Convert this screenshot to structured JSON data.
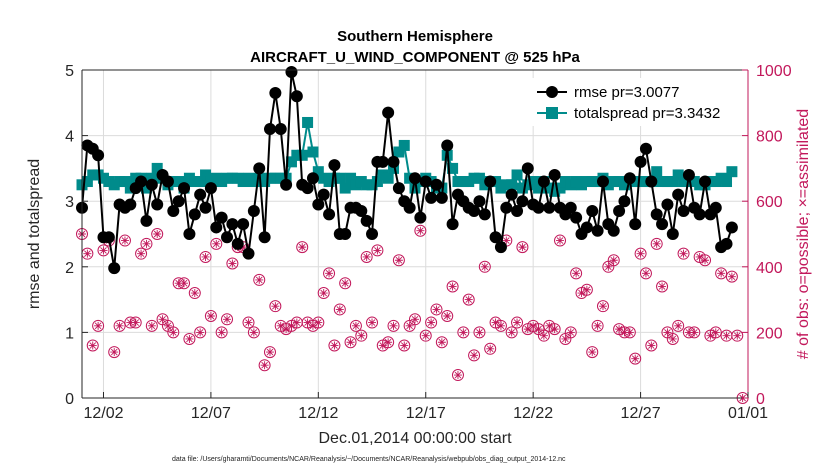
{
  "chart_data": {
    "type": "line",
    "title": "Southern Hemisphere",
    "subtitle": "AIRCRAFT_U_WIND_COMPONENT @ 525 hPa",
    "xlabel": "Dec.01,2014 00:00:00 start",
    "ylabel": "rmse and totalspread",
    "ylabel_right": "# of obs: o=possible; ×=assimilated",
    "footnote": "data file: /Users/gharamti/Documents/NCAR/Reanalysis/~/Documents/NCAR/Reanalysis/webpub/obs_diag_output_2014-12.nc",
    "xlim": [
      1,
      32
    ],
    "ylim": [
      0,
      5
    ],
    "ylim_right": [
      0,
      1000
    ],
    "x_ticks": [
      2,
      7,
      12,
      17,
      22,
      27,
      32
    ],
    "x_tick_labels": [
      "12/02",
      "12/07",
      "12/12",
      "12/17",
      "12/22",
      "12/27",
      "01/01"
    ],
    "y_ticks": [
      0,
      1,
      2,
      3,
      4,
      5
    ],
    "y_tick_labels": [
      "0",
      "1",
      "2",
      "3",
      "4",
      "5"
    ],
    "y_ticks_right": [
      0,
      200,
      400,
      600,
      800,
      1000
    ],
    "y_tick_labels_right": [
      "0",
      "200",
      "400",
      "600",
      "800",
      "1000"
    ],
    "grid": true,
    "legend_position": "top-right",
    "colors": {
      "rmse": "#000000",
      "spread": "#008b8b",
      "obs": "#c2185b"
    },
    "series": [
      {
        "name": "rmse pr=3.0077",
        "key": "rmse",
        "marker": "circle",
        "values": [
          2.9,
          3.85,
          3.8,
          3.7,
          2.45,
          2.45,
          1.98,
          2.95,
          2.9,
          2.95,
          3.2,
          3.3,
          2.7,
          3.25,
          2.95,
          3.4,
          3.3,
          2.85,
          3.0,
          3.2,
          2.5,
          2.8,
          3.1,
          2.9,
          3.2,
          2.6,
          2.75,
          2.45,
          2.65,
          2.35,
          2.65,
          2.2,
          2.85,
          3.5,
          2.45,
          4.1,
          4.65,
          4.1,
          3.25,
          4.97,
          4.6,
          3.25,
          3.2,
          3.35,
          2.95,
          3.1,
          2.8,
          3.55,
          2.5,
          2.5,
          2.9,
          2.9,
          2.85,
          2.7,
          2.5,
          3.6,
          3.6,
          4.35,
          3.6,
          3.2,
          3.0,
          2.9,
          3.35,
          2.75,
          3.3,
          3.05,
          3.25,
          3.05,
          3.85,
          2.65,
          3.1,
          3.0,
          2.9,
          2.85,
          3.0,
          2.8,
          3.3,
          2.45,
          2.3,
          2.9,
          3.1,
          2.85,
          3.0,
          3.5,
          2.95,
          2.9,
          3.3,
          2.9,
          3.4,
          2.9,
          2.8,
          2.9,
          2.75,
          2.5,
          2.6,
          2.85,
          2.55,
          3.3,
          2.65,
          2.55,
          2.85,
          3.0,
          3.35,
          2.65,
          3.6,
          3.8,
          3.3,
          2.8,
          2.65,
          2.95,
          2.5,
          3.1,
          2.85,
          3.4,
          2.9,
          2.8,
          3.3,
          2.8,
          2.9,
          2.3,
          2.35,
          2.6
        ],
        "x_start": 1.0,
        "x_step": 0.25
      },
      {
        "name": "totalspread pr=3.3432",
        "key": "spread",
        "marker": "square",
        "values": [
          3.25,
          3.3,
          3.4,
          3.4,
          3.35,
          3.3,
          3.25,
          3.3,
          3.3,
          3.2,
          3.35,
          3.35,
          3.2,
          3.35,
          3.5,
          3.35,
          3.25,
          3.3,
          3.3,
          3.2,
          3.35,
          3.3,
          3.3,
          3.4,
          3.3,
          3.35,
          3.3,
          3.35,
          3.35,
          3.35,
          3.3,
          3.35,
          3.3,
          3.35,
          3.3,
          3.35,
          3.35,
          3.35,
          3.35,
          3.6,
          3.7,
          3.7,
          4.2,
          3.75,
          3.45,
          3.35,
          3.3,
          3.35,
          3.35,
          3.2,
          3.35,
          3.25,
          3.3,
          3.25,
          3.25,
          3.3,
          3.4,
          3.35,
          3.5,
          3.75,
          3.85,
          3.35,
          3.2,
          3.3,
          3.35,
          3.3,
          3.2,
          3.2,
          3.7,
          3.5,
          3.3,
          3.3,
          3.3,
          3.35,
          3.35,
          3.25,
          3.3,
          3.3,
          3.2,
          3.25,
          3.25,
          3.4,
          3.2,
          3.25,
          3.3,
          3.2,
          3.3,
          3.2,
          3.15,
          3.2,
          3.3,
          3.25,
          3.3,
          3.25,
          3.3,
          3.3,
          3.3,
          3.35,
          3.25,
          3.3,
          3.3,
          3.25,
          3.3,
          3.3,
          3.3,
          3.3,
          3.3,
          3.45,
          3.3,
          3.3,
          3.3,
          3.4,
          3.3,
          3.3,
          3.3,
          3.25,
          3.25,
          3.3,
          3.3,
          3.35,
          3.3,
          3.45
        ],
        "x_start": 1.0,
        "x_step": 0.25
      },
      {
        "name": "# of obs",
        "key": "obs",
        "marker": "circle-asterisk",
        "axis": "right",
        "values": [
          500,
          440,
          160,
          220,
          450,
          480,
          140,
          220,
          480,
          230,
          230,
          440,
          470,
          220,
          500,
          240,
          220,
          200,
          350,
          350,
          180,
          320,
          200,
          430,
          250,
          470,
          200,
          240,
          410,
          460,
          460,
          230,
          200,
          360,
          100,
          140,
          280,
          220,
          210,
          220,
          230,
          460,
          230,
          220,
          230,
          320,
          380,
          160,
          270,
          350,
          170,
          220,
          190,
          430,
          230,
          450,
          160,
          170,
          220,
          420,
          160,
          220,
          240,
          510,
          190,
          230,
          270,
          170,
          250,
          340,
          70,
          200,
          300,
          130,
          200,
          400,
          150,
          230,
          220,
          480,
          200,
          230,
          460,
          210,
          220,
          210,
          190,
          220,
          210,
          480,
          180,
          200,
          380,
          320,
          330,
          140,
          220,
          280,
          400,
          420,
          210,
          200,
          200,
          120,
          440,
          380,
          160,
          470,
          340,
          200,
          180,
          220,
          440,
          200,
          200,
          430,
          420,
          190,
          200,
          380,
          190,
          370,
          190,
          0
        ],
        "x_start": 1.0,
        "x_step": 0.25
      }
    ]
  }
}
